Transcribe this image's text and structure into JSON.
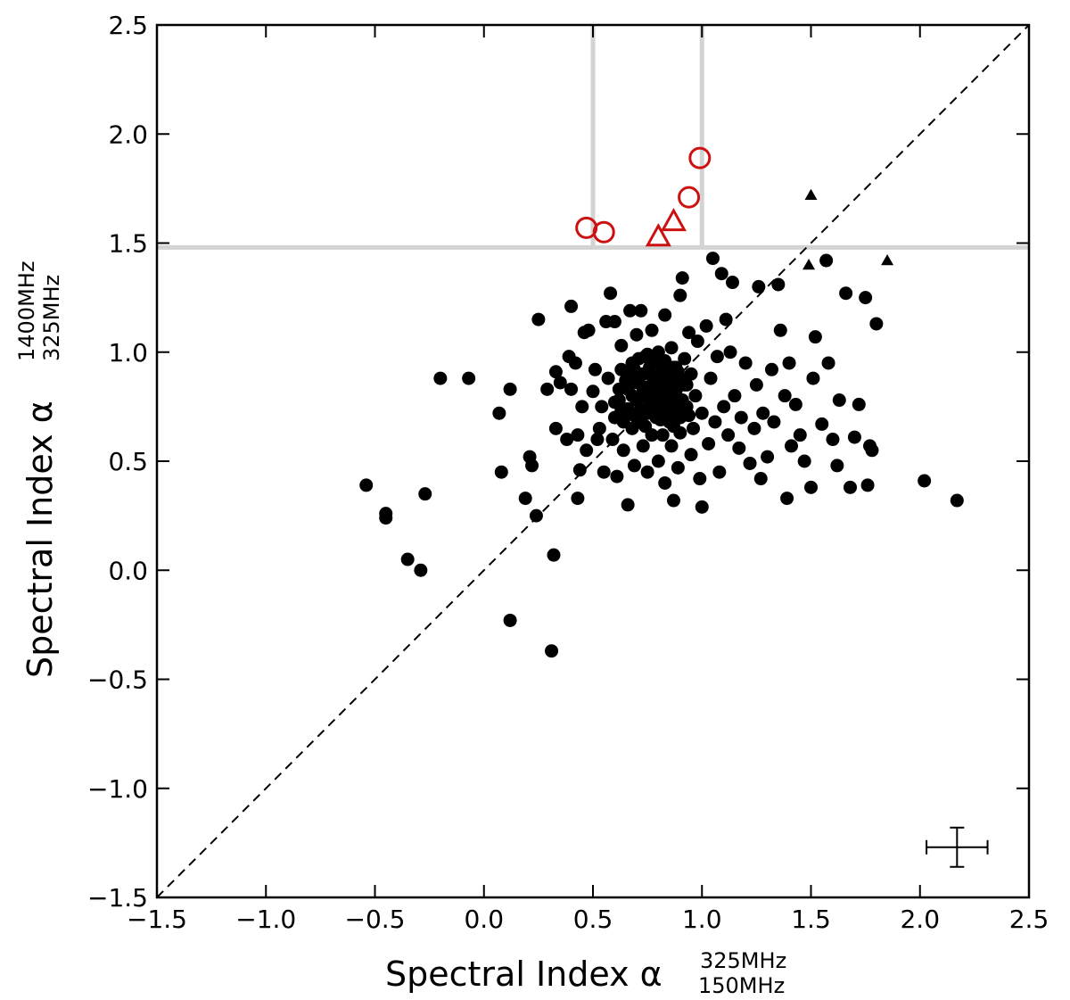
{
  "chart_data": {
    "type": "scatter",
    "title": "",
    "xlabel": {
      "main": "Spectral Index α",
      "sup": "325MHz",
      "sub": "150MHz"
    },
    "ylabel": {
      "main": "Spectral Index α",
      "sup": "1400MHz",
      "sub": "325MHz"
    },
    "xlim": [
      -1.5,
      2.5
    ],
    "ylim": [
      -1.5,
      2.5
    ],
    "xticks": [
      -1.5,
      -1.0,
      -0.5,
      0.0,
      0.5,
      1.0,
      1.5,
      2.0,
      2.5
    ],
    "yticks": [
      -1.5,
      -1.0,
      -0.5,
      0.0,
      0.5,
      1.0,
      1.5,
      2.0,
      2.5
    ],
    "xtick_labels": [
      "−1.5",
      "−1.0",
      "−0.5",
      "0.0",
      "0.5",
      "1.0",
      "1.5",
      "2.0",
      "2.5"
    ],
    "ytick_labels": [
      "−1.5",
      "−1.0",
      "−0.5",
      "0.0",
      "0.5",
      "1.0",
      "1.5",
      "2.0",
      "2.5"
    ],
    "grid": false,
    "legend": null,
    "reference_lines": {
      "diagonal": {
        "from": [
          -1.5,
          -1.5
        ],
        "to": [
          2.5,
          2.5
        ],
        "style": "dashed",
        "color": "#000000"
      },
      "horizontal_y": 1.48,
      "vertical_x": [
        0.5,
        1.0
      ],
      "color": "#d3d3d3"
    },
    "colors": {
      "points": "#000000",
      "highlight": "#cc1111"
    },
    "typical_error": {
      "x": 2.17,
      "y": -1.27,
      "xerr": 0.14,
      "yerr": 0.09
    },
    "series": [
      {
        "marker": "filled-circle",
        "color": "#000000",
        "points": [
          [
            -0.54,
            0.39
          ],
          [
            -0.45,
            0.26
          ],
          [
            -0.45,
            0.24
          ],
          [
            -0.35,
            0.05
          ],
          [
            -0.29,
            0.0
          ],
          [
            -0.27,
            0.35
          ],
          [
            -0.2,
            0.88
          ],
          [
            -0.07,
            0.88
          ],
          [
            0.07,
            0.72
          ],
          [
            0.08,
            0.45
          ],
          [
            0.12,
            0.83
          ],
          [
            0.12,
            -0.23
          ],
          [
            0.19,
            0.33
          ],
          [
            0.21,
            0.52
          ],
          [
            0.22,
            0.48
          ],
          [
            0.24,
            0.25
          ],
          [
            0.25,
            1.15
          ],
          [
            0.29,
            0.83
          ],
          [
            0.31,
            -0.37
          ],
          [
            0.32,
            0.07
          ],
          [
            0.33,
            0.65
          ],
          [
            0.33,
            0.91
          ],
          [
            0.35,
            0.86
          ],
          [
            0.38,
            0.6
          ],
          [
            0.39,
            0.98
          ],
          [
            0.4,
            1.21
          ],
          [
            0.4,
            0.83
          ],
          [
            0.42,
            0.95
          ],
          [
            0.43,
            0.62
          ],
          [
            0.43,
            0.33
          ],
          [
            0.44,
            0.46
          ],
          [
            0.45,
            0.75
          ],
          [
            0.46,
            1.09
          ],
          [
            0.47,
            0.55
          ],
          [
            0.48,
            1.1
          ],
          [
            0.5,
            0.82
          ],
          [
            0.51,
            0.92
          ],
          [
            0.52,
            0.6
          ],
          [
            0.53,
            0.65
          ],
          [
            0.54,
            0.75
          ],
          [
            0.55,
            0.45
          ],
          [
            0.56,
            1.14
          ],
          [
            0.57,
            0.88
          ],
          [
            0.58,
            1.27
          ],
          [
            0.59,
            0.6
          ],
          [
            0.6,
            1.14
          ],
          [
            0.6,
            0.7
          ],
          [
            0.61,
            0.43
          ],
          [
            0.62,
            0.78
          ],
          [
            0.63,
            0.92
          ],
          [
            0.63,
            1.03
          ],
          [
            0.64,
            0.55
          ],
          [
            0.65,
            0.73
          ],
          [
            0.66,
            0.3
          ],
          [
            0.66,
            0.83
          ],
          [
            0.67,
            1.19
          ],
          [
            0.68,
            0.65
          ],
          [
            0.68,
            0.95
          ],
          [
            0.69,
            0.48
          ],
          [
            0.7,
            0.78
          ],
          [
            0.7,
            1.08
          ],
          [
            0.71,
            0.88
          ],
          [
            0.72,
            0.68
          ],
          [
            0.72,
            1.19
          ],
          [
            0.73,
            0.57
          ],
          [
            0.73,
            0.8
          ],
          [
            0.74,
            0.98
          ],
          [
            0.75,
            0.72
          ],
          [
            0.75,
            0.45
          ],
          [
            0.76,
            0.9
          ],
          [
            0.77,
            1.1
          ],
          [
            0.77,
            0.62
          ],
          [
            0.78,
            0.8
          ],
          [
            0.78,
            0.95
          ],
          [
            0.79,
            0.7
          ],
          [
            0.8,
            1.0
          ],
          [
            0.8,
            0.5
          ],
          [
            0.81,
            0.85
          ],
          [
            0.81,
            0.75
          ],
          [
            0.82,
            0.62
          ],
          [
            0.82,
            0.92
          ],
          [
            0.83,
            1.17
          ],
          [
            0.83,
            0.4
          ],
          [
            0.84,
            0.78
          ],
          [
            0.84,
            0.88
          ],
          [
            0.85,
            0.68
          ],
          [
            0.86,
            1.02
          ],
          [
            0.86,
            0.57
          ],
          [
            0.87,
            0.32
          ],
          [
            0.87,
            0.83
          ],
          [
            0.88,
            0.93
          ],
          [
            0.88,
            0.72
          ],
          [
            0.89,
            0.47
          ],
          [
            0.9,
            1.26
          ],
          [
            0.9,
            0.63
          ],
          [
            0.91,
            1.34
          ],
          [
            0.92,
            0.85
          ],
          [
            0.92,
            0.97
          ],
          [
            0.93,
            0.75
          ],
          [
            0.94,
            1.09
          ],
          [
            0.95,
            0.53
          ],
          [
            0.95,
            0.9
          ],
          [
            0.96,
            0.65
          ],
          [
            0.97,
            0.8
          ],
          [
            0.98,
            1.05
          ],
          [
            0.99,
            0.42
          ],
          [
            1.0,
            0.29
          ],
          [
            1.0,
            0.72
          ],
          [
            1.02,
            1.12
          ],
          [
            1.03,
            0.58
          ],
          [
            1.04,
            0.88
          ],
          [
            1.05,
            1.43
          ],
          [
            1.06,
            0.68
          ],
          [
            1.07,
            0.98
          ],
          [
            1.08,
            0.45
          ],
          [
            1.09,
            1.36
          ],
          [
            1.1,
            0.75
          ],
          [
            1.11,
            1.15
          ],
          [
            1.12,
            0.62
          ],
          [
            1.13,
            1.0
          ],
          [
            1.14,
            1.32
          ],
          [
            1.15,
            0.8
          ],
          [
            1.17,
            0.56
          ],
          [
            1.18,
            0.7
          ],
          [
            1.2,
            0.95
          ],
          [
            1.22,
            0.49
          ],
          [
            1.24,
            0.65
          ],
          [
            1.25,
            0.85
          ],
          [
            1.26,
            1.3
          ],
          [
            1.27,
            0.42
          ],
          [
            1.28,
            0.72
          ],
          [
            1.3,
            0.52
          ],
          [
            1.32,
            0.92
          ],
          [
            1.33,
            0.68
          ],
          [
            1.35,
            1.31
          ],
          [
            1.36,
            1.1
          ],
          [
            1.38,
            0.8
          ],
          [
            1.39,
            0.33
          ],
          [
            1.4,
            0.95
          ],
          [
            1.41,
            0.57
          ],
          [
            1.43,
            0.76
          ],
          [
            1.45,
            0.62
          ],
          [
            1.47,
            0.5
          ],
          [
            1.5,
            0.38
          ],
          [
            1.51,
            0.88
          ],
          [
            1.52,
            1.07
          ],
          [
            1.55,
            0.67
          ],
          [
            1.57,
            1.42
          ],
          [
            1.58,
            0.95
          ],
          [
            1.6,
            0.6
          ],
          [
            1.62,
            0.48
          ],
          [
            1.63,
            0.78
          ],
          [
            1.66,
            1.27
          ],
          [
            1.68,
            0.38
          ],
          [
            1.7,
            0.61
          ],
          [
            1.72,
            0.76
          ],
          [
            1.75,
            1.25
          ],
          [
            1.76,
            0.39
          ],
          [
            1.77,
            0.57
          ],
          [
            1.78,
            0.55
          ],
          [
            1.8,
            1.13
          ],
          [
            2.02,
            0.41
          ],
          [
            2.17,
            0.32
          ],
          [
            0.62,
            0.83
          ],
          [
            0.66,
            0.74
          ],
          [
            0.7,
            0.86
          ],
          [
            0.73,
            0.9
          ],
          [
            0.76,
            0.78
          ],
          [
            0.79,
            0.84
          ],
          [
            0.83,
            0.83
          ],
          [
            0.86,
            0.78
          ],
          [
            0.68,
            0.8
          ],
          [
            0.72,
            0.74
          ],
          [
            0.75,
            0.84
          ],
          [
            0.79,
            0.77
          ],
          [
            0.82,
            0.88
          ],
          [
            0.85,
            0.9
          ],
          [
            0.88,
            0.82
          ],
          [
            0.91,
            0.78
          ],
          [
            0.64,
            0.68
          ],
          [
            0.69,
            0.71
          ],
          [
            0.74,
            0.66
          ],
          [
            0.78,
            0.72
          ],
          [
            0.81,
            0.69
          ],
          [
            0.84,
            0.73
          ],
          [
            0.87,
            0.66
          ],
          [
            0.9,
            0.7
          ],
          [
            0.67,
            0.9
          ],
          [
            0.71,
            0.97
          ],
          [
            0.76,
            0.93
          ],
          [
            0.8,
            0.89
          ],
          [
            0.83,
            0.96
          ],
          [
            0.87,
            0.93
          ],
          [
            0.9,
            0.88
          ],
          [
            0.93,
            0.85
          ],
          [
            0.6,
            0.77
          ],
          [
            0.65,
            0.87
          ],
          [
            0.69,
            0.92
          ],
          [
            0.73,
            0.82
          ],
          [
            0.77,
            0.76
          ],
          [
            0.8,
            0.8
          ],
          [
            0.84,
            0.85
          ],
          [
            0.88,
            0.76
          ],
          [
            0.63,
            0.73
          ],
          [
            0.72,
            0.7
          ],
          [
            0.75,
            0.99
          ],
          [
            0.78,
            0.87
          ],
          [
            0.82,
            0.74
          ],
          [
            0.86,
            0.86
          ],
          [
            0.89,
            0.91
          ],
          [
            0.94,
            0.71
          ]
        ]
      },
      {
        "marker": "filled-triangle",
        "color": "#000000",
        "points": [
          [
            1.5,
            1.72
          ],
          [
            1.49,
            1.4
          ],
          [
            1.85,
            1.42
          ]
        ]
      },
      {
        "marker": "open-circle",
        "color": "#cc1111",
        "points": [
          [
            0.47,
            1.57
          ],
          [
            0.55,
            1.55
          ],
          [
            0.94,
            1.71
          ],
          [
            0.99,
            1.89
          ]
        ]
      },
      {
        "marker": "open-triangle",
        "color": "#cc1111",
        "points": [
          [
            0.8,
            1.53
          ],
          [
            0.87,
            1.6
          ]
        ]
      }
    ]
  }
}
